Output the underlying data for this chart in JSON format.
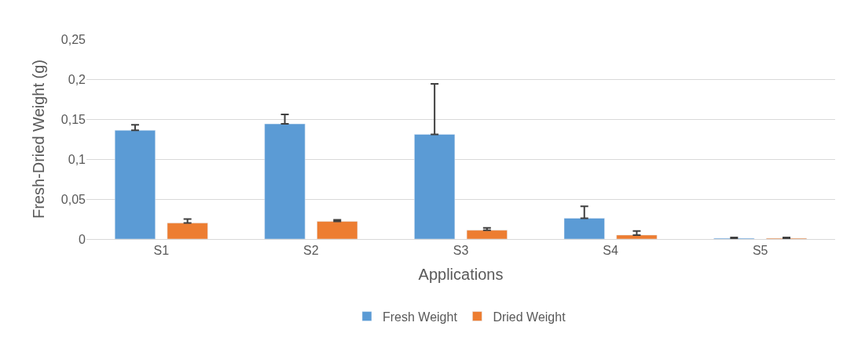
{
  "chart_data": {
    "type": "bar",
    "xlabel": "Applications",
    "ylabel": "Fresh-Dried Weight (g)",
    "categories": [
      "S1",
      "S2",
      "S3",
      "S4",
      "S5"
    ],
    "series": [
      {
        "name": "Fresh Weight",
        "color": "#5b9bd5",
        "values": [
          0.136,
          0.144,
          0.131,
          0.026,
          0.001
        ],
        "errors": [
          [
            0.136,
            0.143
          ],
          [
            0.144,
            0.156
          ],
          [
            0.131,
            0.194
          ],
          [
            0.026,
            0.041
          ],
          [
            0.001,
            0.002
          ]
        ]
      },
      {
        "name": "Dried Weight",
        "color": "#ed7d31",
        "values": [
          0.02,
          0.022,
          0.011,
          0.005,
          0.001
        ],
        "errors": [
          [
            0.02,
            0.025
          ],
          [
            0.022,
            0.024
          ],
          [
            0.011,
            0.014
          ],
          [
            0.005,
            0.01
          ],
          [
            0.001,
            0.002
          ]
        ]
      }
    ],
    "ylim": [
      0,
      0.25
    ],
    "yticks": [
      {
        "value": 0,
        "label": "0"
      },
      {
        "value": 0.05,
        "label": "0,05"
      },
      {
        "value": 0.1,
        "label": "0,1"
      },
      {
        "value": 0.15,
        "label": "0,15"
      },
      {
        "value": 0.2,
        "label": "0,2"
      },
      {
        "value": 0.25,
        "label": "0,25"
      }
    ],
    "grid": "y",
    "legend": "bottom"
  }
}
